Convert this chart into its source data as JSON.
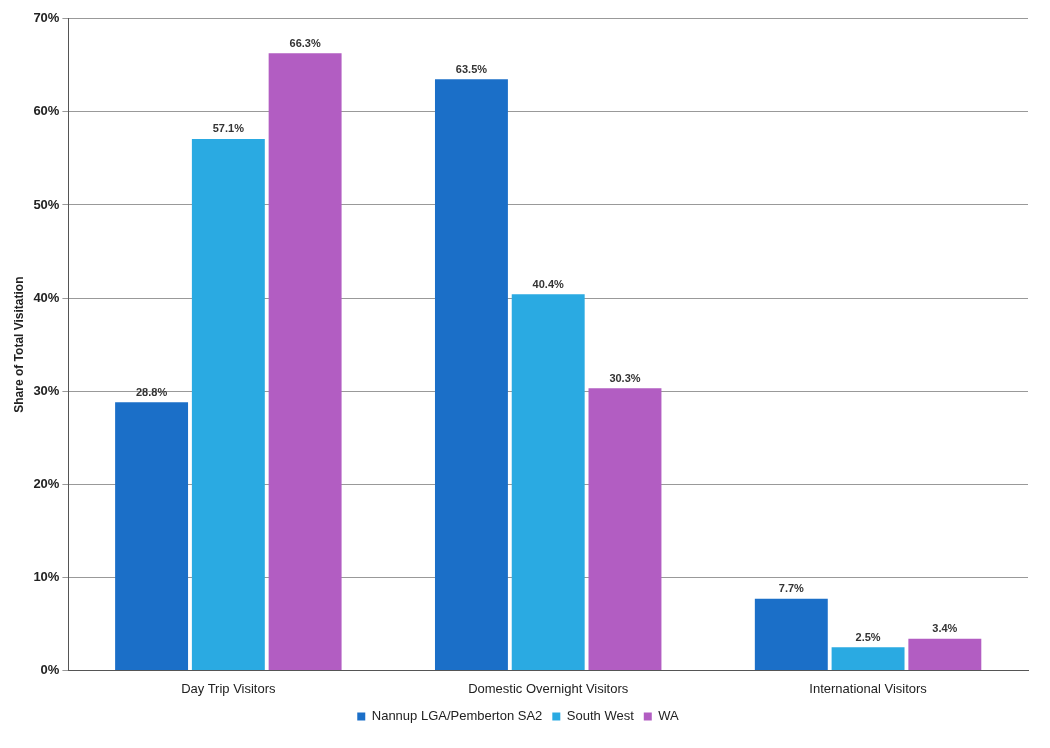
{
  "chart_data": {
    "type": "bar",
    "ylabel": "Share of Total Visitation",
    "categories": [
      "Day Trip Visitors",
      "Domestic Overnight Visitors",
      "International Visitors"
    ],
    "series": [
      {
        "name": "Nannup LGA/Pemberton SA2",
        "color": "#1b6fc8",
        "values": [
          28.8,
          63.5,
          7.7
        ],
        "value_labels": [
          "28.8%",
          "63.5%",
          "7.7%"
        ]
      },
      {
        "name": "South West",
        "color": "#2aaae2",
        "values": [
          57.1,
          40.4,
          2.5
        ],
        "value_labels": [
          "57.1%",
          "40.4%",
          "2.5%"
        ]
      },
      {
        "name": "WA",
        "color": "#b25dc2",
        "values": [
          66.3,
          30.3,
          3.4
        ],
        "value_labels": [
          "66.3%",
          "30.3%",
          "3.4%"
        ]
      }
    ],
    "ylim": [
      0,
      70
    ],
    "yticks": [
      {
        "value": 0,
        "label": "0%"
      },
      {
        "value": 10,
        "label": "10%"
      },
      {
        "value": 20,
        "label": "20%"
      },
      {
        "value": 30,
        "label": "30%"
      },
      {
        "value": 40,
        "label": "40%"
      },
      {
        "value": 50,
        "label": "50%"
      },
      {
        "value": 60,
        "label": "60%"
      },
      {
        "value": 70,
        "label": "70%"
      }
    ],
    "grid": "y",
    "legend": "bottom"
  }
}
